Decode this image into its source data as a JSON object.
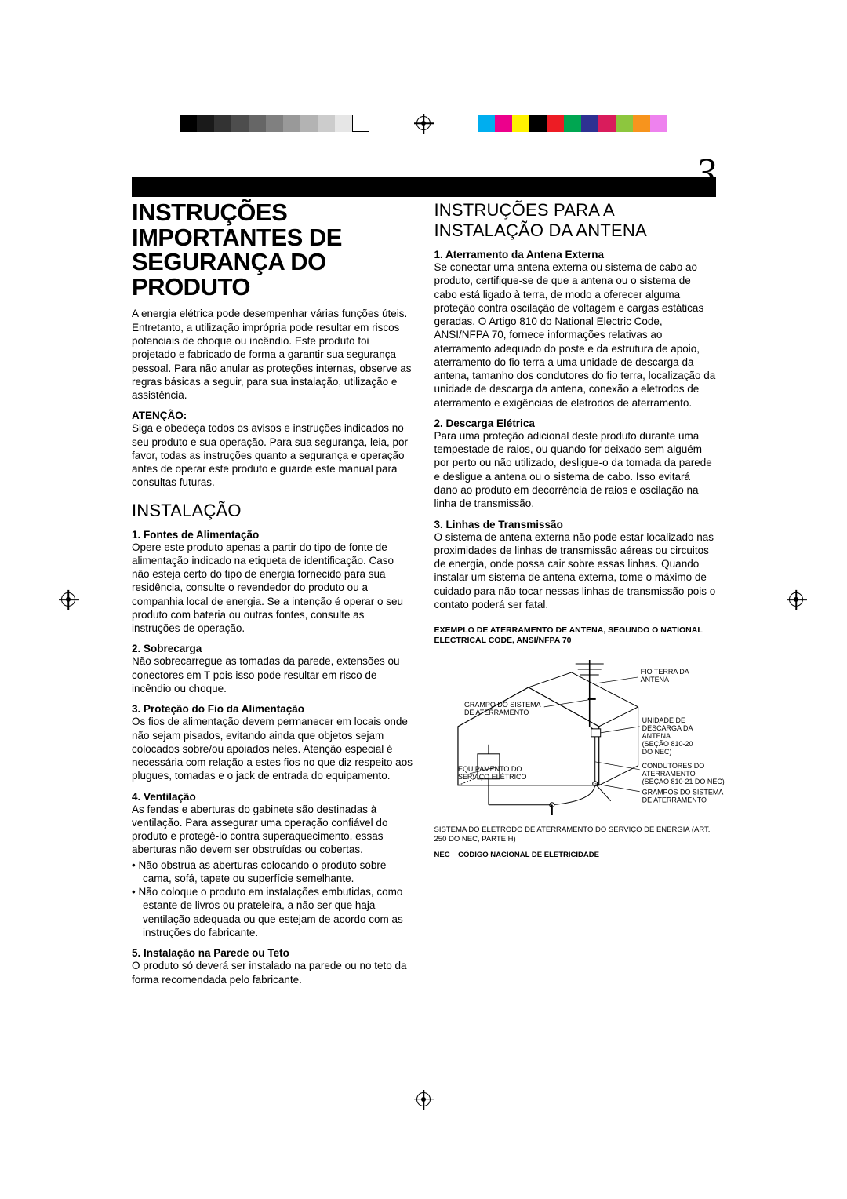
{
  "page_number": "3",
  "registration": {
    "grayscale": [
      "#000000",
      "#1a1a1a",
      "#333333",
      "#4d4d4d",
      "#666666",
      "#808080",
      "#999999",
      "#b3b3b3",
      "#cccccc",
      "#e6e6e6",
      "#ffffff"
    ],
    "color": [
      "#00aeef",
      "#ec008c",
      "#fff200",
      "#000000",
      "#ed1c24",
      "#00a651",
      "#2e3192",
      "#d91c5c",
      "#8dc63e",
      "#f7941d",
      "#ee82ee"
    ],
    "swatch_w": 22
  },
  "left": {
    "title": "INSTRUÇÕES IMPORTANTES DE SEGURANÇA DO PRODUTO",
    "intro": "A energia elétrica pode desempenhar várias funções úteis. Entretanto, a utilização imprópria pode resultar em riscos potenciais de choque ou incêndio. Este produto foi projetado e fabricado de forma a garantir sua segurança pessoal. Para não anular as proteções internas, observe as regras básicas a seguir, para sua instalação, utilização e assistência.",
    "atencao_label": "ATENÇÃO:",
    "atencao_body": "Siga e obedeça todos os avisos e instruções indicados no seu produto e sua operação. Para sua segurança, leia, por favor, todas as instruções quanto a segurança e operação antes de operar este produto e guarde este manual para consultas futuras.",
    "instalacao_heading": "INSTALAÇÃO",
    "items": [
      {
        "hd": "1.  Fontes de Alimentação",
        "body": "Opere este produto apenas a partir do tipo de fonte de alimentação indicado na etiqueta de identificação. Caso não esteja certo do tipo de energia fornecido para sua residência, consulte o revendedor do produto ou a companhia local de energia. Se a intenção é operar o seu produto com bateria ou outras fontes, consulte as instruções de operação."
      },
      {
        "hd": "2.  Sobrecarga",
        "body": "Não sobrecarregue as tomadas da parede, extensões ou conectores em T pois isso pode resultar em risco de incêndio ou choque."
      },
      {
        "hd": "3.  Proteção do Fio da Alimentação",
        "body": "Os fios de alimentação devem permanecer em locais onde não sejam pisados, evitando ainda que objetos sejam colocados sobre/ou apoiados neles. Atenção especial é necessária com relação a estes fios no que diz respeito aos plugues, tomadas e o jack de entrada do equipamento."
      },
      {
        "hd": "4.  Ventilação",
        "body": "As fendas e aberturas do gabinete são destinadas à ventilação. Para assegurar uma operação confiável do produto e protegê-lo contra superaquecimento, essas aberturas não devem ser obstruídas ou cobertas.",
        "bullets": [
          "Não obstrua as aberturas colocando o produto sobre cama, sofá, tapete ou superfície semelhante.",
          "Não coloque o produto em instalações embutidas, como estante de livros ou prateleira, a não ser que haja ventilação adequada ou que estejam de acordo com as instruções do fabricante."
        ]
      },
      {
        "hd": "5.  Instalação na Parede ou Teto",
        "body": "O produto só deverá ser instalado na parede ou no teto da forma recomendada pelo fabricante."
      }
    ]
  },
  "right": {
    "heading": "INSTRUÇÕES PARA A INSTALAÇÃO DA ANTENA",
    "items": [
      {
        "hd": "1.  Aterramento da Antena Externa",
        "body": "Se conectar uma antena externa ou sistema de cabo ao produto, certifique-se de que a antena ou o sistema de cabo está ligado à terra, de modo a oferecer alguma proteção contra oscilação de voltagem e cargas estáticas geradas. O Artigo 810 do National Electric Code, ANSI/NFPA 70, fornece informações relativas ao aterramento adequado do poste e da estrutura de apoio, aterramento do fio terra a uma unidade de descarga da antena, tamanho dos condutores do fio terra, localização da unidade de descarga da antena, conexão a eletrodos de aterramento e exigências de eletrodos de aterramento."
      },
      {
        "hd": "2.  Descarga Elétrica",
        "body": "Para uma proteção adicional deste produto durante uma tempestade de raios, ou quando for deixado sem alguém por perto ou não utilizado, desligue-o da tomada da parede e desligue a antena ou o sistema de cabo. Isso evitará dano ao produto em decorrência de raios e oscilação na linha de transmissão."
      },
      {
        "hd": "3.  Linhas de Transmissão",
        "body": "O sistema de antena externa não pode estar localizado nas proximidades de linhas de transmissão aéreas ou circuitos de energia, onde possa cair sobre essas linhas. Quando instalar um sistema de antena externa, tome o máximo de cuidado para não tocar nessas linhas de transmissão pois o contato poderá ser fatal."
      }
    ],
    "diagram": {
      "caption": "EXEMPLO DE ATERRAMENTO DE ANTENA, SEGUNDO O NATIONAL ELECTRICAL CODE, ANSI/NFPA 70",
      "labels": {
        "lead_in": "FIO TERRA DA ANTENA",
        "clamp_top": "GRAMPO DO SISTEMA DE ATERRAMENTO",
        "discharge": "UNIDADE DE DESCARGA DA ANTENA (SEÇÃO 810-20 DO NEC)",
        "service": "EQUIPAMENTO DO SERVIÇO ELÉTRICO",
        "conductors": "CONDUTORES DO ATERRAMENTO (SEÇÃO 810-21 DO NEC)",
        "clamps_bot": "GRAMPOS DO SISTEMA DE ATERRAMENTO",
        "electrode": "SISTEMA DO ELETRODO DE ATERRAMENTO DO SERVIÇO DE ENERGIA (ART. 250 DO NEC, PARTE H)"
      },
      "footer": "NEC – CÓDIGO NACIONAL DE ELETRICIDADE"
    }
  }
}
